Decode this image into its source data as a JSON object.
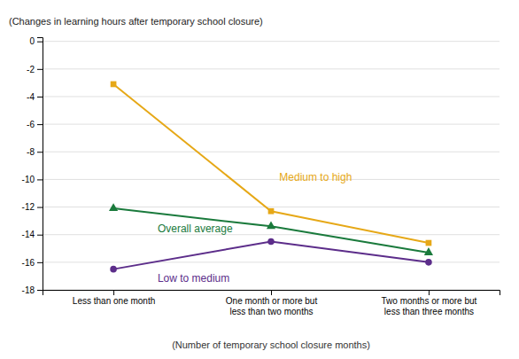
{
  "chart_data": {
    "type": "line",
    "categories": [
      "Less than one month",
      "One month or more but\nless than two months",
      "Two months or more but\nless than three months"
    ],
    "series": [
      {
        "name": "Overall average",
        "color": "#1a7a3c",
        "values": [
          -12.1,
          -13.4,
          -15.3
        ],
        "marker": "triangle"
      },
      {
        "name": "Medium to high",
        "color": "#e6a817",
        "values": [
          -3.1,
          -12.3,
          -14.6
        ],
        "marker": "square"
      },
      {
        "name": "Low to medium",
        "color": "#5c2d8a",
        "values": [
          -16.5,
          -14.5,
          -16.0
        ],
        "marker": "circle"
      }
    ],
    "ylim": [
      -18,
      0.3
    ],
    "yticks": [
      0,
      -2,
      -4,
      -6,
      -8,
      -10,
      -12,
      -14,
      -16,
      -18
    ],
    "ylabel": "(Changes in learning hours after temporary school closure)",
    "xlabel": "(Number of temporary school closure months)",
    "grid": true
  }
}
